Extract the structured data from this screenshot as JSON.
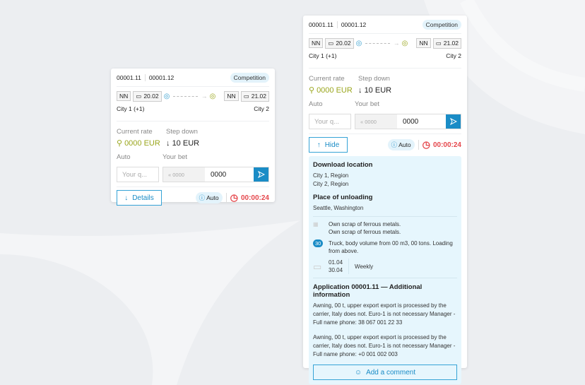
{
  "cards": [
    {
      "ids": [
        "00001.11",
        "00001.12"
      ],
      "badge": "Competition",
      "from_code": "NN",
      "from_date": "20.02",
      "to_code": "NN",
      "to_date": "21.02",
      "from_city": "City 1 (+1)",
      "to_city": "City 2",
      "rate_label": "Current rate",
      "step_label": "Step down",
      "rate_value": "0000 EUR",
      "step_value": "10 EUR",
      "auto_label": "Auto",
      "bet_label": "Your bet",
      "auto_placeholder": "Your q...",
      "bet_old": "0000",
      "bet_value": "0000",
      "toggle_label": "Details",
      "auto_badge": "Auto",
      "timer": "00:00:24"
    },
    {
      "ids": [
        "00001.11",
        "00001.12"
      ],
      "badge": "Competition",
      "from_code": "NN",
      "from_date": "20.02",
      "to_code": "NN",
      "to_date": "21.02",
      "from_city": "City 1 (+1)",
      "to_city": "City 2",
      "rate_label": "Current rate",
      "step_label": "Step down",
      "rate_value": "0000 EUR",
      "step_value": "10 EUR",
      "auto_label": "Auto",
      "bet_label": "Your bet",
      "auto_placeholder": "Your q...",
      "bet_old": "0000",
      "bet_value": "0000",
      "toggle_label": "Hide",
      "auto_badge": "Auto",
      "timer": "00:00:24"
    }
  ],
  "details": {
    "download_title": "Download location",
    "download": [
      "City 1, Region",
      "City 2, Region"
    ],
    "unload_title": "Place of unloading",
    "unload": "Seattle, Washington",
    "cargo": [
      "Own scrap of ferrous metals.",
      "Own scrap of ferrous metals."
    ],
    "truck_count": "30",
    "truck": "Truck, body volume from 00 m3, 00 tons. Loading from above.",
    "date_from": "01.04",
    "date_to": "30.04",
    "frequency": "Weekly",
    "app_title": "Application 00001.11 — Additional information",
    "notes": [
      "Awning, 00 t, upper export export is processed by the carrier, Italy does not. Euro-1 is not necessary Manager - Full name phone: 38 067 001 22 33",
      "Awning, 00 t, upper export export is processed by the carrier, Italy does not. Euro-1 is not necessary Manager - Full name phone: +0 001 002 003"
    ],
    "comment_label": "Add a comment"
  },
  "colors": {
    "accent": "#1a8cc6",
    "rate": "#9aa61d",
    "timer": "#e5484d",
    "details_bg": "#e6f6fd"
  }
}
